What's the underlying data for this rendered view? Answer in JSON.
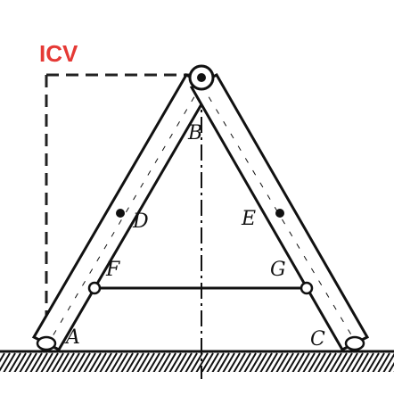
{
  "annotation": {
    "text": "ICV",
    "color": "#e53935"
  },
  "points": {
    "A": "A",
    "B": "B",
    "C": "C",
    "D": "D",
    "E": "E",
    "F": "F",
    "G": "G"
  },
  "colors": {
    "ink": "#111111",
    "background": "#ffffff"
  }
}
